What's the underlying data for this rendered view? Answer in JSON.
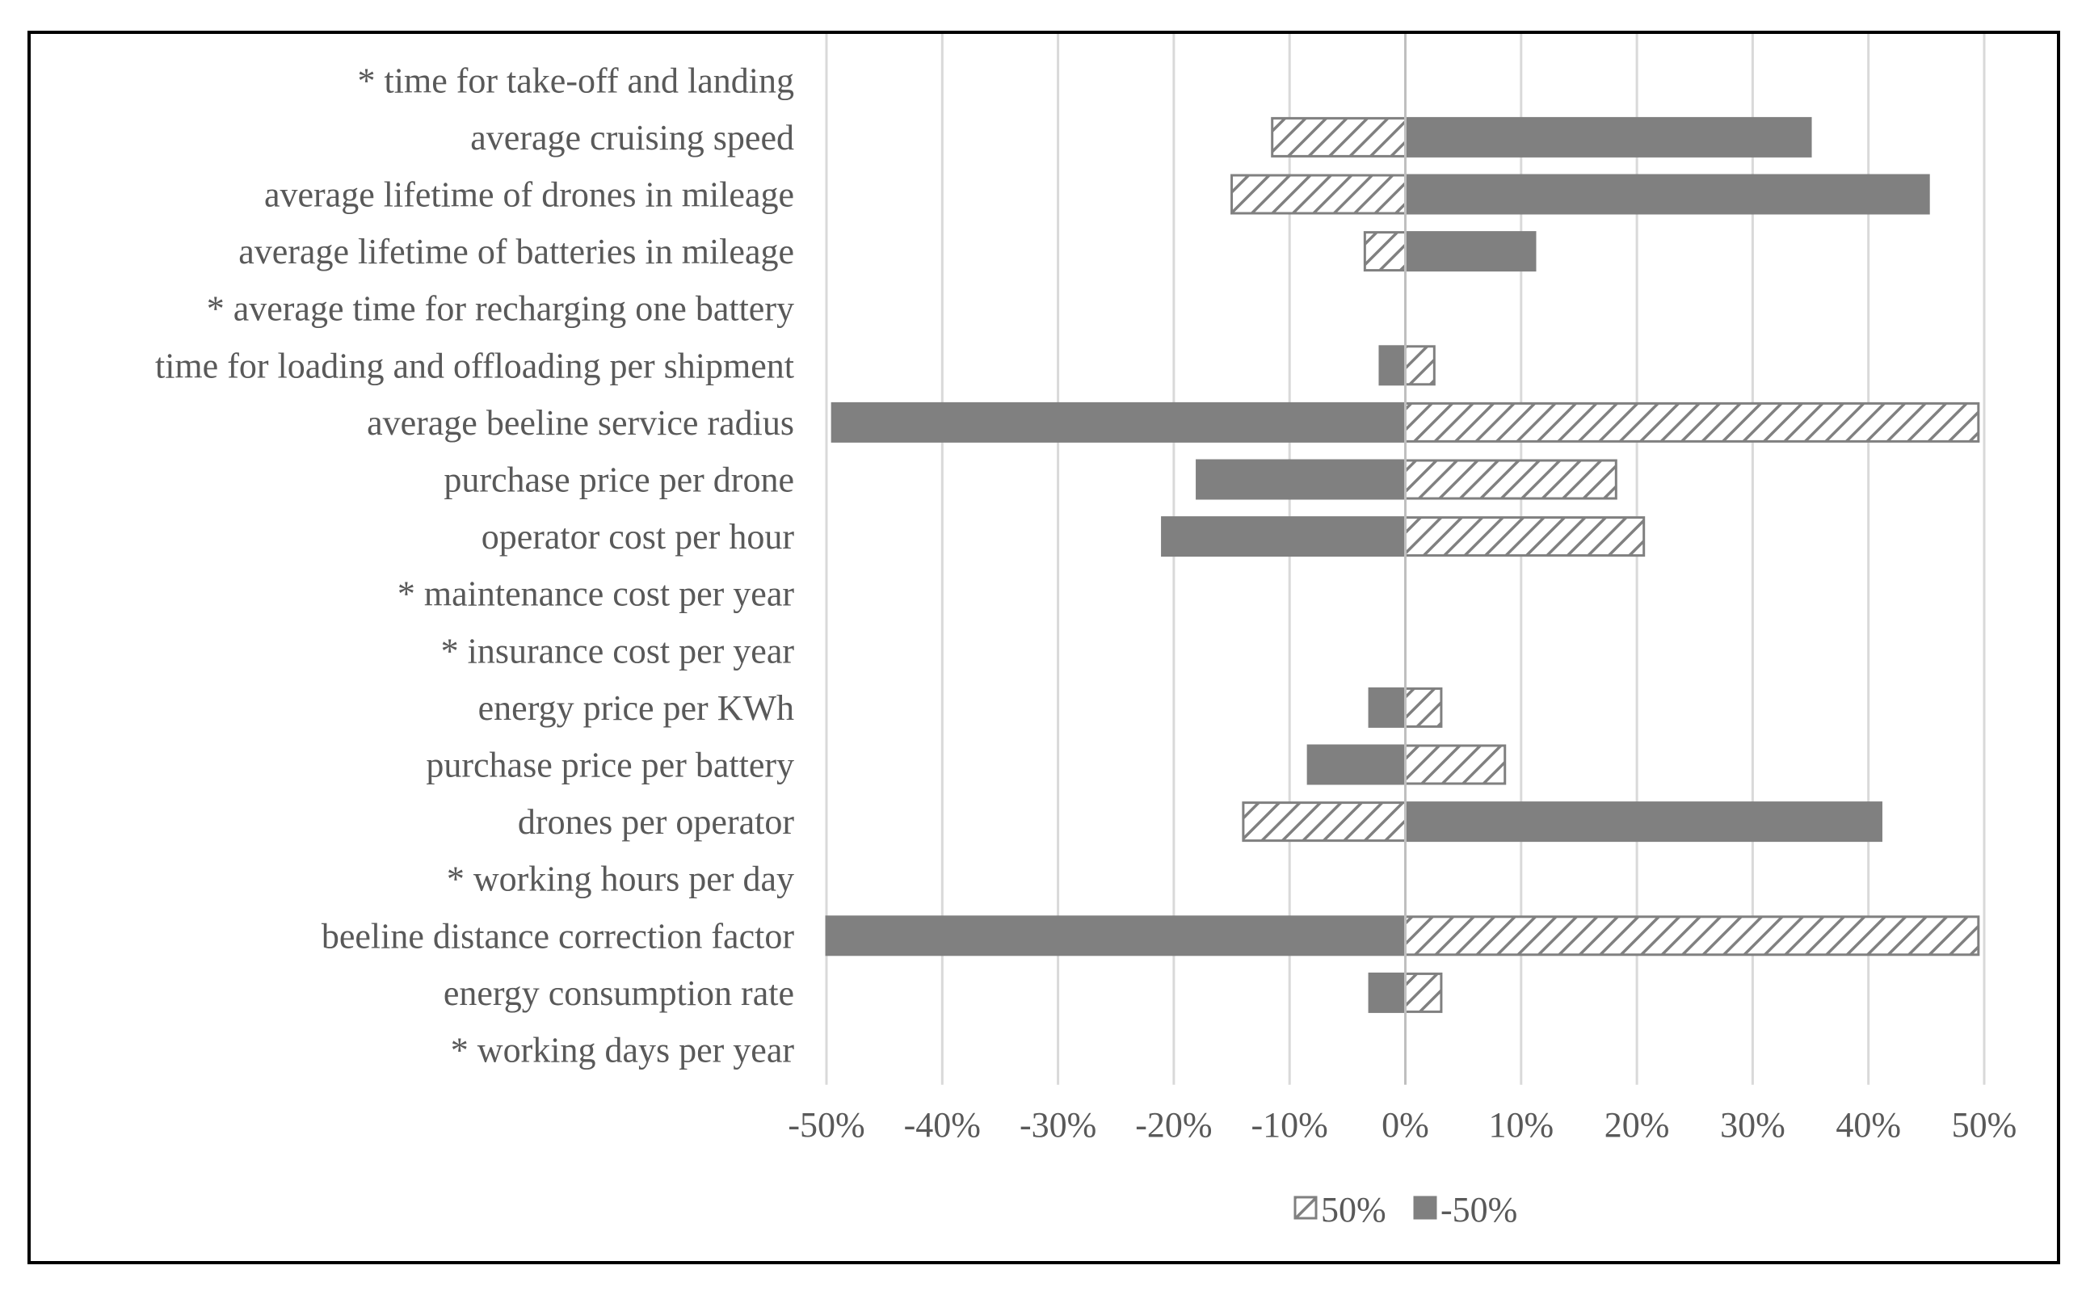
{
  "colors": {
    "solid_fill": "#808080",
    "hatch_stroke": "#808080",
    "grid": "#d9d9d9",
    "axis": "#bfbfbf",
    "text": "#595959",
    "frame": "#000000"
  },
  "chart_data": {
    "type": "bar",
    "orientation": "horizontal",
    "title": "",
    "xlabel": "",
    "ylabel": "",
    "xlim": [
      -50,
      50
    ],
    "x_ticks": [
      -50,
      -40,
      -30,
      -20,
      -10,
      0,
      10,
      20,
      30,
      40,
      50
    ],
    "x_tick_labels": [
      "-50%",
      "-40%",
      "-30%",
      "-20%",
      "-10%",
      "0%",
      "10%",
      "20%",
      "30%",
      "40%",
      "50%"
    ],
    "grid": "vertical",
    "legend_position": "bottom",
    "categories": [
      "* time for take-off and landing",
      "average cruising speed",
      "average lifetime of drones in mileage",
      "average lifetime of batteries in mileage",
      "* average time for recharging one battery",
      "time for loading and offloading per shipment",
      "average beeline service radius",
      "purchase price per drone",
      "operator cost per hour",
      "* maintenance cost per year",
      "* insurance cost per year",
      "energy price per KWh",
      "purchase price per battery",
      "drones per operator",
      "* working hours per day",
      "beeline distance correction factor",
      "energy consumption rate",
      "* working days per year"
    ],
    "series": [
      {
        "name": "50%",
        "pattern": "hatched",
        "values": [
          0,
          -11.5,
          -15,
          -3.5,
          0,
          2.5,
          49.5,
          18.2,
          20.6,
          0,
          0,
          3.1,
          8.6,
          -14,
          0,
          49.5,
          3.1,
          0
        ]
      },
      {
        "name": "-50%",
        "pattern": "solid",
        "values": [
          0,
          35,
          45.2,
          11.2,
          0,
          -2.2,
          -49.5,
          -18,
          -21,
          0,
          0,
          -3.1,
          -8.4,
          41.1,
          0,
          -50,
          -3.1,
          0
        ]
      }
    ]
  }
}
